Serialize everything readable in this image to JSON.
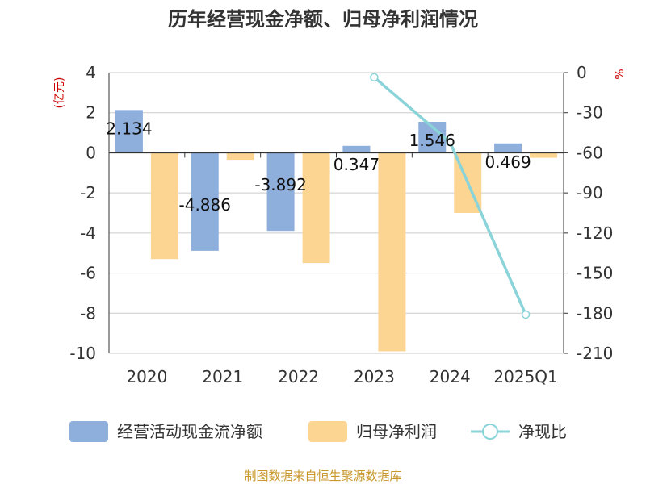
{
  "chart_data": {
    "type": "bar",
    "title": "历年经营现金净额、归母净利润情况",
    "categories": [
      "2020",
      "2021",
      "2022",
      "2023",
      "2024",
      "2025Q1"
    ],
    "left_axis": {
      "unit": "(亿元)",
      "ticks": [
        4,
        2,
        0,
        -2,
        -4,
        -6,
        -8,
        -10
      ],
      "ylim": [
        -10,
        4
      ]
    },
    "right_axis": {
      "unit": "%",
      "ticks": [
        0,
        -30,
        -60,
        -90,
        -120,
        -150,
        -180,
        -210
      ],
      "ylim": [
        -210,
        0
      ]
    },
    "series": [
      {
        "name": "经营活动现金流净额",
        "type": "bar",
        "axis": "left",
        "color": "#8eaedb",
        "values": [
          2.134,
          -4.886,
          -3.892,
          0.347,
          1.546,
          0.469
        ],
        "labels": [
          "2.134",
          "-4.886",
          "-3.892",
          "0.347",
          "1.546",
          "0.469"
        ]
      },
      {
        "name": "归母净利润",
        "type": "bar",
        "axis": "left",
        "color": "#fdd592",
        "values": [
          -5.3,
          -0.35,
          -5.5,
          -9.9,
          -3.0,
          -0.25
        ]
      },
      {
        "name": "净现比",
        "type": "line",
        "axis": "right",
        "color": "#8ad3d8",
        "values": [
          null,
          null,
          null,
          -3.5,
          -52,
          -181
        ]
      }
    ],
    "grid": true,
    "legend": "bottom"
  },
  "footer": {
    "source": "制图数据来自恒生聚源数据库"
  }
}
